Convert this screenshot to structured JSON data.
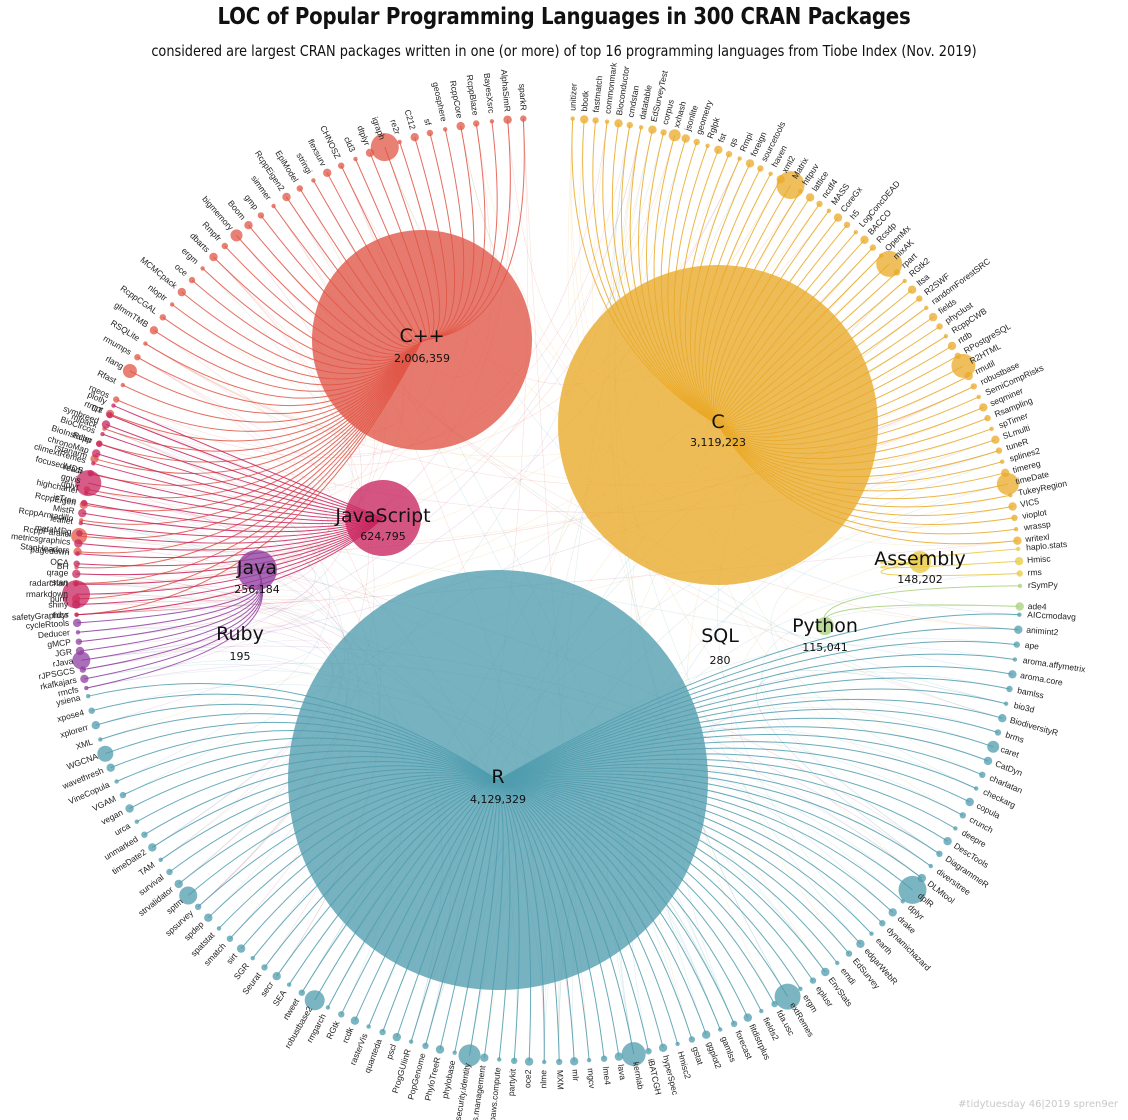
{
  "header": {
    "title": "LOC of Popular Programming Languages in 300 CRAN Packages",
    "subtitle": "considered are largest CRAN packages written in one (or more) of top 16 programming languages from Tiobe Index (Nov. 2019)"
  },
  "credit": "#tidytuesday 46|2019 spren9er",
  "colors": {
    "cpp": "#e05545",
    "c": "#e9a928",
    "javascript": "#c8255f",
    "java": "#8e3fa0",
    "r": "#4f9cae",
    "assembly": "#e9c93c",
    "python": "#a8d07c",
    "gray": "#bbbbbb"
  },
  "chart_data": {
    "type": "circle-packing-network",
    "languages": [
      {
        "key": "cpp",
        "name": "C++",
        "loc_label": "2,006,359",
        "loc": 2006359
      },
      {
        "key": "c",
        "name": "C",
        "loc_label": "3,119,223",
        "loc": 3119223
      },
      {
        "key": "javascript",
        "name": "JavaScript",
        "loc_label": "624,795",
        "loc": 624795
      },
      {
        "key": "java",
        "name": "Java",
        "loc_label": "256,184",
        "loc": 256184
      },
      {
        "key": "r",
        "name": "R",
        "loc_label": "4,129,329",
        "loc": 4129329
      },
      {
        "key": "assembly",
        "name": "Assembly",
        "loc_label": "148,202",
        "loc": 148202
      },
      {
        "key": "python",
        "name": "Python",
        "loc_label": "115,041",
        "loc": 115041
      },
      {
        "key": "ruby",
        "name": "Ruby",
        "loc_label": "195",
        "loc": 195
      },
      {
        "key": "sql",
        "name": "SQL",
        "loc_label": "280",
        "loc": 280
      }
    ],
    "packages": {
      "cpp": [
        "tidyr",
        "purrr",
        "rstan",
        "BH",
        "StanHeaders",
        "RcppParallel",
        "RcppArmadillo",
        "RcppEigen",
        "dplyr",
        "readr",
        "rstanarm",
        "Rcpp",
        "mlpack",
        "rtmpt",
        "rgeos",
        "Rfast",
        "rlang",
        "rmumps",
        "RSQLite",
        "glmmTMB",
        "RcppCGAL",
        "nloptr",
        "MCMCpack",
        "oce",
        "ergm",
        "dbarts",
        "Rmpfr",
        "bigmemory",
        "Boom",
        "gmp",
        "simmer",
        "RcppEigen2",
        "EpiModel",
        "stringi",
        "flexsurv",
        "CHNOSZ",
        "cld3",
        "dtplyr",
        "igraph",
        "re2r",
        "C212",
        "sf",
        "geosphere",
        "RcppCore",
        "RcppBlaze",
        "BayesXsrc",
        "AlphaSimR",
        "sparkR"
      ],
      "c": [
        "unitizer",
        "bbotk",
        "fastmatch",
        "commonmark",
        "Bioconductor",
        "cmdstan",
        "datatable",
        "EdSurveyTest",
        "corpus",
        "xxhash",
        "jsonlite",
        "geometry",
        "Rglpk",
        "fst",
        "qs",
        "Rmpi",
        "foreign",
        "sourcetools",
        "haven",
        "xml2",
        "Matrix",
        "httpuv",
        "lattice",
        "ncdf4",
        "MASS",
        "CoreGx",
        "h5",
        "LogConcDEAD",
        "BACCO",
        "Rcsdp",
        "OpenMx",
        "mixAK",
        "rpart",
        "RGtk2",
        "ltsa",
        "R2SWF",
        "randomForestSRC",
        "fields",
        "phyclust",
        "RcppCWB",
        "rtdb",
        "RPostgreSQL",
        "R2HTML",
        "rmutil",
        "robustbase",
        "SemiCompRisks",
        "seqminer",
        "Rsampling",
        "spTimer",
        "SLmulti",
        "tuneR",
        "splines2",
        "timereg",
        "timeDate",
        "TukeyRegion",
        "VIC5",
        "vioplot",
        "wrassp",
        "writexl"
      ],
      "javascript": [
        "safetyGraphics",
        "shiny",
        "rmarkdown",
        "radarchart",
        "qrage",
        "OCA",
        "pagedown",
        "metricsgraphics",
        "metaMDg",
        "leaflet",
        "MistR",
        "jsTree",
        "highcharter",
        "ggvis",
        "focusedMDS",
        "climextRemes",
        "chronoMap",
        "BioInstaller",
        "BioCircos",
        "symbreed",
        "DT",
        "plotly"
      ],
      "java": [
        "rmcfs",
        "rkafkajars",
        "rJPSGCS",
        "rJava",
        "JGR",
        "gMCP",
        "Deducer",
        "cycleRtools"
      ],
      "assembly": [
        "haplo.stats",
        "Hmisc",
        "rms"
      ],
      "python": [
        "rSymPy",
        "ade4"
      ],
      "r": [
        "AICcmodavg",
        "animint2",
        "ape",
        "aroma.affymetrix",
        "aroma.core",
        "bamlss",
        "bio3d",
        "BiodiversityR",
        "brms",
        "caret",
        "CatDyn",
        "charlatan",
        "checkarg",
        "copula",
        "crunch",
        "deepre",
        "DescTools",
        "DiagrammeR",
        "diversitree",
        "DLMtool",
        "dplR",
        "dplyr",
        "drake",
        "dynamichazard",
        "earth",
        "edgarWebR",
        "EdSurvey",
        "emdi",
        "EnvStats",
        "eplusr",
        "ergm",
        "extRemes",
        "fda.usc",
        "fields2",
        "fitdistrplus",
        "forecast",
        "gamlss",
        "ggplot2",
        "gstat",
        "Hmisc2",
        "hyperSpec",
        "iBATCGH",
        "kernlab",
        "lava",
        "lme4",
        "mgcv",
        "mlr",
        "MXM",
        "nlme",
        "oce2",
        "partykit",
        "paws.compute",
        "paws.management",
        "paws.security.identity",
        "phylobase",
        "PhyloTreeR",
        "PopGenome",
        "ProgGUIinR",
        "pscl",
        "quanteda",
        "rasterVis",
        "rcdk",
        "RGtk",
        "rmgarch",
        "robustbase2",
        "rtweet",
        "SEA",
        "secr",
        "Seurat",
        "SGR",
        "sirt",
        "smatch",
        "spatstat",
        "spdep",
        "spsurvey",
        "sptm",
        "strvalidator",
        "survival",
        "TAM",
        "timeDate2",
        "unmarked",
        "urca",
        "vegan",
        "VGAM",
        "VineCopula",
        "wavethresh",
        "WGCNA",
        "XML",
        "xplorerr",
        "xpose4",
        "ysiena"
      ]
    },
    "weights_note": ""
  }
}
